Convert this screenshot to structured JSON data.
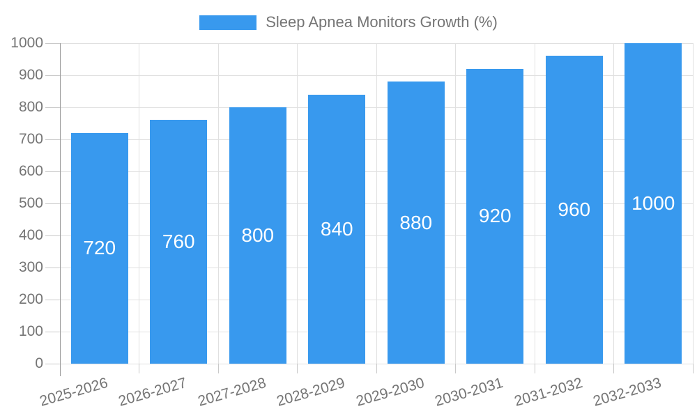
{
  "legend": {
    "label": "Sleep Apnea Monitors Growth (%)"
  },
  "chart_data": {
    "type": "bar",
    "title": "Sleep Apnea Monitors Growth (%)",
    "categories": [
      "2025-2026",
      "2026-2027",
      "2027-2028",
      "2028-2029",
      "2029-2030",
      "2030-2031",
      "2031-2032",
      "2032-2033"
    ],
    "values": [
      720,
      760,
      800,
      840,
      880,
      920,
      960,
      1000
    ],
    "series": [
      {
        "name": "Sleep Apnea Monitors Growth (%)",
        "values": [
          720,
          760,
          800,
          840,
          880,
          920,
          960,
          1000
        ]
      }
    ],
    "bar_labels": [
      "720",
      "760",
      "800",
      "840",
      "880",
      "920",
      "960",
      "1000"
    ],
    "xlabel": "",
    "ylabel": "",
    "ylim": [
      0,
      1000
    ],
    "ytick_step": 100,
    "yticks": [
      0,
      100,
      200,
      300,
      400,
      500,
      600,
      700,
      800,
      900,
      1000
    ],
    "grid": true,
    "legend_position": "top-center",
    "colors": {
      "bar": "#3899EE",
      "bar_label": "#FFFFFF",
      "axis_text": "#757575",
      "gridline": "#E0E0E0",
      "tick": "#C9C9C9",
      "axis_line": "#999999",
      "background": "#FFFFFF"
    }
  }
}
